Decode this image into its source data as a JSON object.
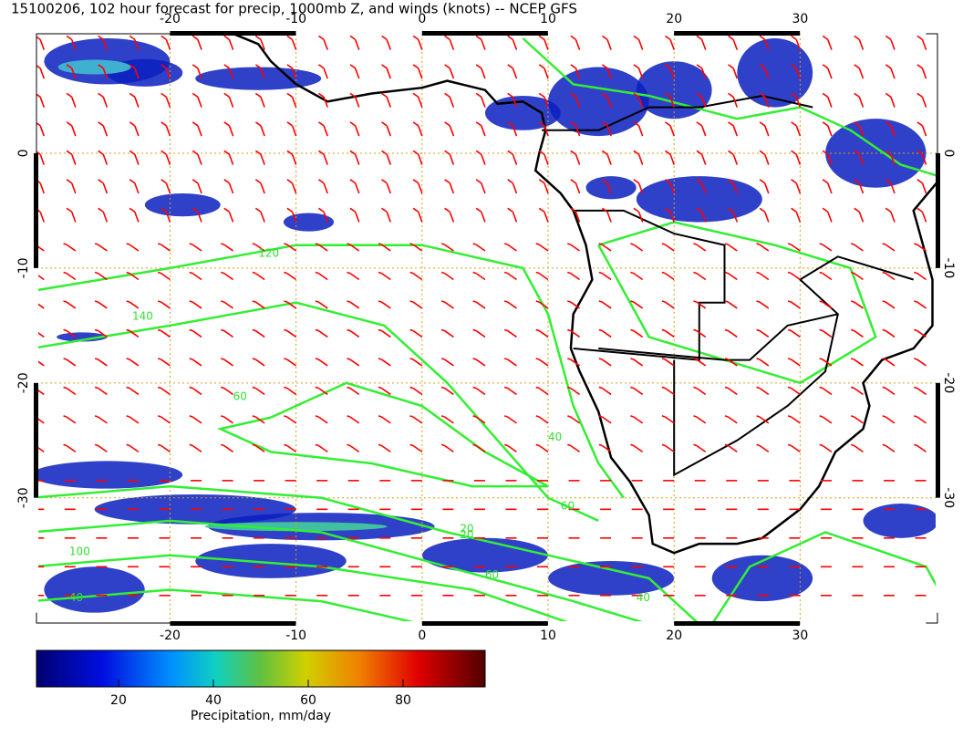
{
  "title": "15100206, 102 hour forecast for precip, 1000mb Z, and winds (knots) -- NCEP GFS",
  "map": {
    "xlim": [
      -30.6,
      40.9
    ],
    "ylim": [
      -40.9,
      10.4
    ],
    "xticks": [
      -20,
      -10,
      0,
      10,
      20,
      30
    ],
    "yticks": [
      0,
      -10,
      -20,
      -30
    ],
    "grid": true
  },
  "colorbar": {
    "label": "Precipitation, mm/day",
    "lim": [
      2.7,
      97.3
    ],
    "ticks": [
      20,
      40,
      60,
      80
    ]
  },
  "contour_labels": [
    120,
    140,
    60,
    40,
    60,
    20,
    100,
    40,
    60,
    20,
    40
  ]
}
